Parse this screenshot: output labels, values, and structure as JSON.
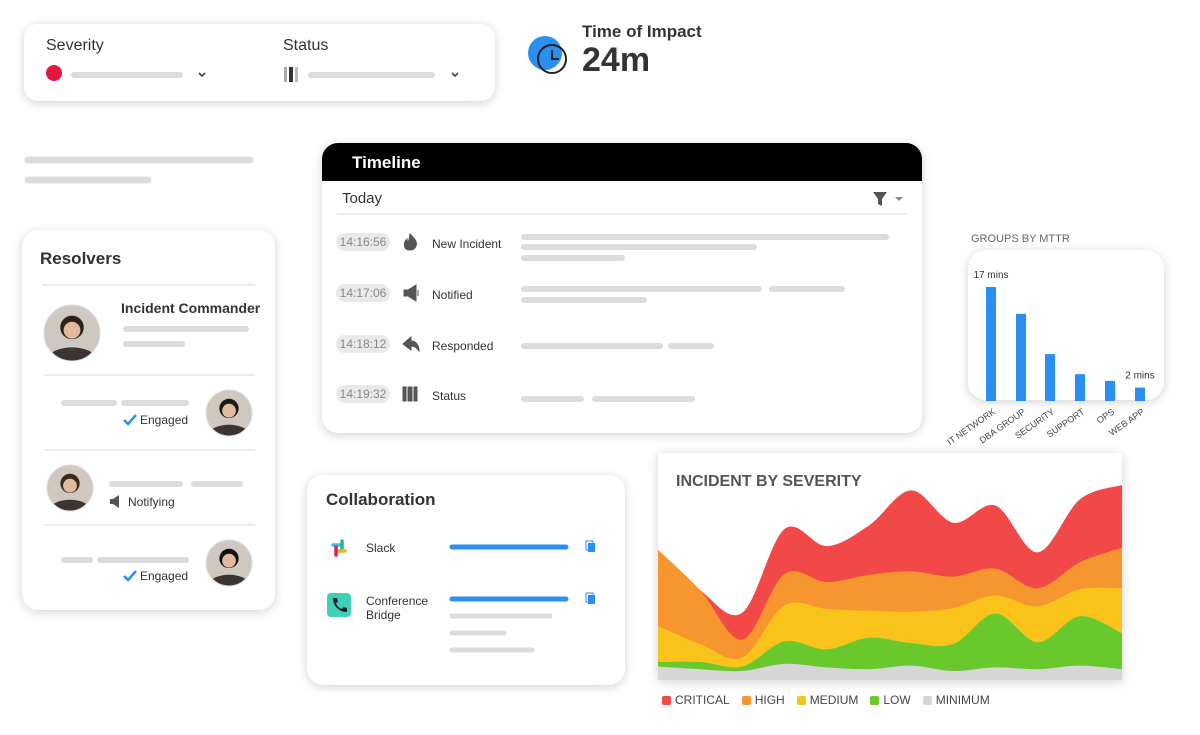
{
  "severity_panel": {
    "severity_label": "Severity",
    "status_label": "Status"
  },
  "time_of_impact": {
    "label": "Time of Impact",
    "value": "24m"
  },
  "timeline": {
    "title": "Timeline",
    "day": "Today",
    "events": [
      {
        "time": "14:16:56",
        "event": "New Incident"
      },
      {
        "time": "14:17:06",
        "event": "Notified"
      },
      {
        "time": "14:18:12",
        "event": "Responded"
      },
      {
        "time": "14:19:32",
        "event": "Status"
      }
    ]
  },
  "resolvers": {
    "title": "Resolvers",
    "commander": "Incident Commander",
    "members": [
      {
        "status": "Engaged"
      },
      {
        "status": "Notifying"
      },
      {
        "status": "Engaged"
      }
    ]
  },
  "collaboration": {
    "title": "Collaboration",
    "channels": [
      {
        "name": "Slack"
      },
      {
        "name": "Conference Bridge"
      }
    ]
  },
  "chart_data": [
    {
      "type": "bar",
      "title": "GROUPS BY MTTR",
      "color": "#2b8ff0",
      "categories": [
        "IT NETWORK",
        "DBA GROUP",
        "SECURITY",
        "SUPPORT",
        "OPS",
        "WEB APP"
      ],
      "values": [
        17,
        13,
        7,
        4,
        3,
        2
      ],
      "value_labels": [
        "17 mins",
        null,
        null,
        null,
        null,
        "2 mins"
      ]
    },
    {
      "type": "area",
      "stacked": true,
      "title": "INCIDENT BY SEVERITY",
      "series": [
        {
          "name": "CRITICAL",
          "color": "#f24848",
          "values": [
            0,
            0,
            30,
            50,
            40,
            55,
            90,
            60,
            70,
            40,
            70,
            70
          ]
        },
        {
          "name": "HIGH",
          "color": "#f7952f",
          "values": [
            85,
            60,
            20,
            35,
            30,
            40,
            45,
            35,
            30,
            20,
            30,
            45
          ]
        },
        {
          "name": "MEDIUM",
          "color": "#f9c31c",
          "values": [
            40,
            20,
            10,
            40,
            45,
            30,
            35,
            40,
            20,
            40,
            30,
            50
          ]
        },
        {
          "name": "LOW",
          "color": "#69c92c",
          "values": [
            5,
            8,
            5,
            25,
            20,
            35,
            25,
            30,
            60,
            30,
            55,
            40
          ]
        },
        {
          "name": "MINIMUM",
          "color": "#d6d6d6",
          "values": [
            15,
            12,
            10,
            18,
            14,
            12,
            16,
            10,
            14,
            12,
            16,
            12
          ]
        }
      ]
    }
  ]
}
